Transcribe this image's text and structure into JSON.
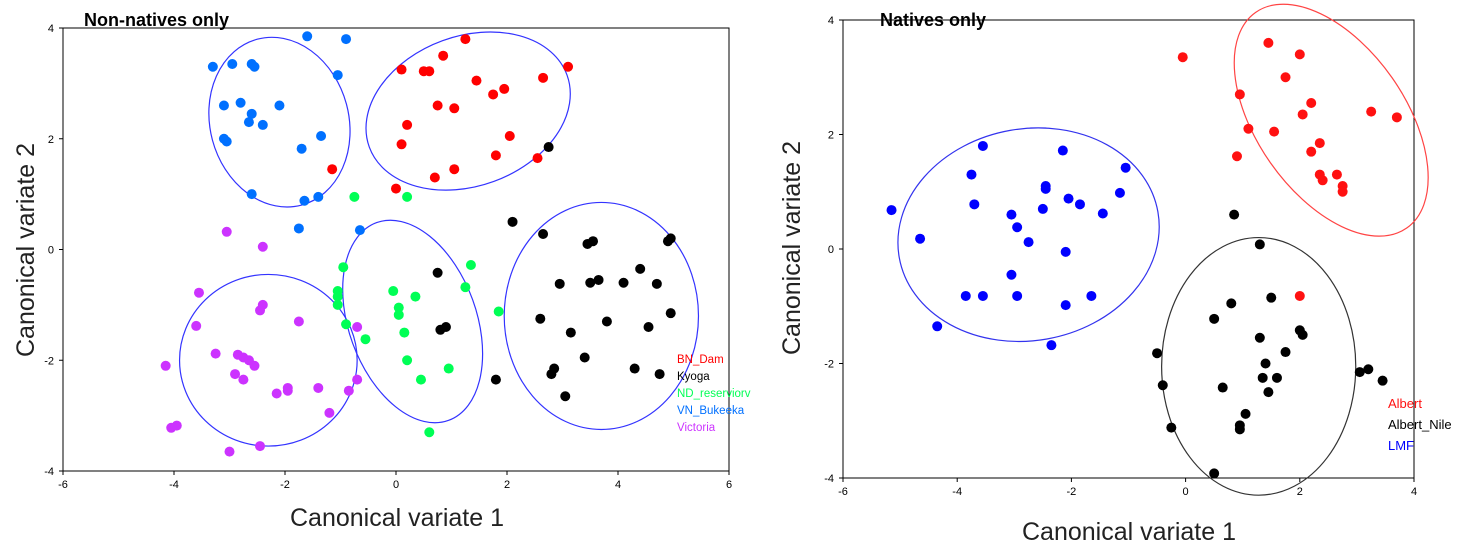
{
  "chart_data": [
    {
      "type": "scatter",
      "title": "Non-natives only",
      "xlabel": "Canonical variate 1",
      "ylabel": "Canonical variate 2",
      "xlim": [
        -6,
        6
      ],
      "ylim": [
        -4,
        4
      ],
      "xticks": [
        "-6",
        "-4",
        "-2",
        "0",
        "2",
        "4",
        "6"
      ],
      "yticks": [
        "4",
        "2",
        "0",
        "-2",
        "-4"
      ],
      "legend_position": "bottom-right",
      "series": [
        {
          "name": "BN_Dam",
          "color": "#ff0000",
          "points": [
            [
              0.1,
              3.25
            ],
            [
              0.5,
              3.22
            ],
            [
              0.6,
              3.22
            ],
            [
              0.85,
              3.5
            ],
            [
              1.25,
              3.8
            ],
            [
              1.45,
              3.05
            ],
            [
              1.75,
              2.8
            ],
            [
              1.95,
              2.9
            ],
            [
              2.65,
              3.1
            ],
            [
              3.1,
              3.3
            ],
            [
              0.75,
              2.6
            ],
            [
              1.05,
              2.55
            ],
            [
              0.2,
              2.25
            ],
            [
              0.1,
              1.9
            ],
            [
              1.8,
              1.7
            ],
            [
              2.05,
              2.05
            ],
            [
              2.55,
              1.65
            ],
            [
              1.05,
              1.45
            ],
            [
              0.7,
              1.3
            ],
            [
              -1.15,
              1.45
            ],
            [
              0.0,
              1.1
            ]
          ]
        },
        {
          "name": "Kyoga",
          "color": "#000000",
          "points": [
            [
              2.75,
              1.85
            ],
            [
              2.1,
              0.5
            ],
            [
              2.65,
              0.28
            ],
            [
              3.45,
              0.1
            ],
            [
              3.55,
              0.15
            ],
            [
              4.9,
              0.15
            ],
            [
              4.95,
              0.2
            ],
            [
              0.75,
              -0.42
            ],
            [
              2.95,
              -0.62
            ],
            [
              3.5,
              -0.6
            ],
            [
              3.65,
              -0.55
            ],
            [
              4.1,
              -0.6
            ],
            [
              4.4,
              -0.35
            ],
            [
              4.7,
              -0.62
            ],
            [
              4.95,
              -1.15
            ],
            [
              2.6,
              -1.25
            ],
            [
              3.15,
              -1.5
            ],
            [
              3.8,
              -1.3
            ],
            [
              4.55,
              -1.4
            ],
            [
              0.8,
              -1.45
            ],
            [
              0.9,
              -1.4
            ],
            [
              3.4,
              -1.95
            ],
            [
              4.3,
              -2.15
            ],
            [
              2.85,
              -2.15
            ],
            [
              2.8,
              -2.25
            ],
            [
              1.8,
              -2.35
            ],
            [
              4.75,
              -2.25
            ],
            [
              3.05,
              -2.65
            ]
          ]
        },
        {
          "name": "ND_reserviorv",
          "color": "#00ff55",
          "points": [
            [
              -0.75,
              0.95
            ],
            [
              0.2,
              0.95
            ],
            [
              -0.95,
              -0.32
            ],
            [
              1.35,
              -0.28
            ],
            [
              1.25,
              -0.68
            ],
            [
              -1.05,
              -0.75
            ],
            [
              -0.05,
              -0.75
            ],
            [
              -1.05,
              -0.85
            ],
            [
              0.35,
              -0.85
            ],
            [
              -1.05,
              -1.0
            ],
            [
              0.05,
              -1.05
            ],
            [
              1.85,
              -1.12
            ],
            [
              0.05,
              -1.18
            ],
            [
              -0.9,
              -1.35
            ],
            [
              0.15,
              -1.5
            ],
            [
              -0.55,
              -1.62
            ],
            [
              0.2,
              -2.0
            ],
            [
              0.95,
              -2.15
            ],
            [
              0.45,
              -2.35
            ],
            [
              0.6,
              -3.3
            ]
          ]
        },
        {
          "name": "VN_Bukeeka",
          "color": "#0070ff",
          "points": [
            [
              -1.6,
              3.85
            ],
            [
              -0.9,
              3.8
            ],
            [
              -3.3,
              3.3
            ],
            [
              -2.95,
              3.35
            ],
            [
              -2.6,
              3.35
            ],
            [
              -2.55,
              3.3
            ],
            [
              -1.05,
              3.15
            ],
            [
              -3.1,
              2.6
            ],
            [
              -2.8,
              2.65
            ],
            [
              -2.1,
              2.6
            ],
            [
              -2.6,
              2.45
            ],
            [
              -2.65,
              2.3
            ],
            [
              -2.4,
              2.25
            ],
            [
              -3.1,
              2.0
            ],
            [
              -3.05,
              1.95
            ],
            [
              -1.35,
              2.05
            ],
            [
              -1.7,
              1.82
            ],
            [
              -2.6,
              1.0
            ],
            [
              -1.4,
              0.95
            ],
            [
              -1.65,
              0.88
            ],
            [
              -1.75,
              0.38
            ],
            [
              -0.65,
              0.35
            ]
          ]
        },
        {
          "name": "Victoria",
          "color": "#cc33ff",
          "points": [
            [
              -3.05,
              0.32
            ],
            [
              -2.4,
              0.05
            ],
            [
              -3.55,
              -0.78
            ],
            [
              -2.4,
              -1.0
            ],
            [
              -2.45,
              -1.1
            ],
            [
              -1.75,
              -1.3
            ],
            [
              -0.7,
              -1.4
            ],
            [
              -3.6,
              -1.38
            ],
            [
              -3.25,
              -1.88
            ],
            [
              -2.85,
              -1.9
            ],
            [
              -2.75,
              -1.95
            ],
            [
              -2.65,
              -2.0
            ],
            [
              -2.55,
              -2.1
            ],
            [
              -2.9,
              -2.25
            ],
            [
              -2.75,
              -2.35
            ],
            [
              -0.7,
              -2.35
            ],
            [
              -4.15,
              -2.1
            ],
            [
              -2.15,
              -2.6
            ],
            [
              -1.95,
              -2.5
            ],
            [
              -1.4,
              -2.5
            ],
            [
              -1.95,
              -2.55
            ],
            [
              -0.85,
              -2.55
            ],
            [
              -1.2,
              -2.95
            ],
            [
              -4.05,
              -3.22
            ],
            [
              -3.95,
              -3.18
            ],
            [
              -2.45,
              -3.55
            ],
            [
              -3.0,
              -3.65
            ]
          ]
        }
      ],
      "ellipses": [
        {
          "group": "VN_Bukeeka",
          "cx": -2.1,
          "cy": 2.3,
          "rx": 1.25,
          "ry": 1.55,
          "rotate": -15
        },
        {
          "group": "BN_Dam",
          "cx": 1.3,
          "cy": 2.5,
          "rx": 1.35,
          "ry": 1.9,
          "rotate": 70
        },
        {
          "group": "ND_reserviorv",
          "cx": 0.3,
          "cy": -1.3,
          "rx": 1.15,
          "ry": 1.9,
          "rotate": -20
        },
        {
          "group": "Kyoga",
          "cx": 3.7,
          "cy": -1.2,
          "rx": 1.75,
          "ry": 2.05,
          "rotate": 0
        },
        {
          "group": "Victoria",
          "cx": -2.3,
          "cy": -2.0,
          "rx": 1.6,
          "ry": 1.55,
          "rotate": 0
        }
      ],
      "ellipse_color": "#3333ff"
    },
    {
      "type": "scatter",
      "title": "Natives only",
      "xlabel": "Canonical variate 1",
      "ylabel": "Canonical variate 2",
      "xlim": [
        -6,
        4
      ],
      "ylim": [
        -4,
        4
      ],
      "xticks": [
        "-6",
        "-4",
        "-2",
        "0",
        "2",
        "4"
      ],
      "yticks": [
        "4",
        "2",
        "0",
        "-2",
        "-4"
      ],
      "legend_position": "bottom-right",
      "series": [
        {
          "name": "Albert",
          "color": "#ff1111",
          "points": [
            [
              -0.05,
              3.35
            ],
            [
              1.45,
              3.6
            ],
            [
              2.0,
              3.4
            ],
            [
              1.75,
              3.0
            ],
            [
              0.95,
              2.7
            ],
            [
              2.2,
              2.55
            ],
            [
              2.05,
              2.35
            ],
            [
              1.1,
              2.1
            ],
            [
              1.55,
              2.05
            ],
            [
              3.25,
              2.4
            ],
            [
              3.7,
              2.3
            ],
            [
              2.35,
              1.85
            ],
            [
              2.2,
              1.7
            ],
            [
              0.9,
              1.62
            ],
            [
              2.35,
              1.3
            ],
            [
              2.4,
              1.2
            ],
            [
              2.65,
              1.3
            ],
            [
              2.75,
              1.1
            ],
            [
              2.75,
              1.0
            ],
            [
              2.0,
              -0.82
            ]
          ]
        },
        {
          "name": "Albert_Nile",
          "color": "#000000",
          "points": [
            [
              0.85,
              0.6
            ],
            [
              1.3,
              0.08
            ],
            [
              0.8,
              -0.95
            ],
            [
              1.5,
              -0.85
            ],
            [
              0.5,
              -1.22
            ],
            [
              1.3,
              -1.55
            ],
            [
              2.0,
              -1.42
            ],
            [
              2.05,
              -1.5
            ],
            [
              -0.5,
              -1.82
            ],
            [
              1.75,
              -1.8
            ],
            [
              1.4,
              -2.0
            ],
            [
              1.35,
              -2.25
            ],
            [
              1.6,
              -2.25
            ],
            [
              3.05,
              -2.15
            ],
            [
              3.2,
              -2.1
            ],
            [
              3.45,
              -2.3
            ],
            [
              -0.4,
              -2.38
            ],
            [
              0.65,
              -2.42
            ],
            [
              1.45,
              -2.5
            ],
            [
              1.05,
              -2.88
            ],
            [
              0.95,
              -3.08
            ],
            [
              0.95,
              -3.15
            ],
            [
              -0.25,
              -3.12
            ],
            [
              0.5,
              -3.92
            ]
          ]
        },
        {
          "name": "LMF",
          "color": "#0000ff",
          "points": [
            [
              -3.55,
              1.8
            ],
            [
              -2.15,
              1.72
            ],
            [
              -1.05,
              1.42
            ],
            [
              -3.75,
              1.3
            ],
            [
              -2.45,
              1.1
            ],
            [
              -2.45,
              1.05
            ],
            [
              -2.05,
              0.88
            ],
            [
              -1.85,
              0.78
            ],
            [
              -1.15,
              0.98
            ],
            [
              -3.7,
              0.78
            ],
            [
              -2.5,
              0.7
            ],
            [
              -5.15,
              0.68
            ],
            [
              -1.45,
              0.62
            ],
            [
              -3.05,
              0.6
            ],
            [
              -2.95,
              0.38
            ],
            [
              -4.65,
              0.18
            ],
            [
              -2.75,
              0.12
            ],
            [
              -2.1,
              -0.05
            ],
            [
              -3.05,
              -0.45
            ],
            [
              -3.85,
              -0.82
            ],
            [
              -3.55,
              -0.82
            ],
            [
              -2.95,
              -0.82
            ],
            [
              -1.65,
              -0.82
            ],
            [
              -2.1,
              -0.98
            ],
            [
              -4.35,
              -1.35
            ],
            [
              -2.35,
              -1.68
            ]
          ]
        }
      ],
      "ellipses": [
        {
          "group": "LMF",
          "cx": -2.75,
          "cy": 0.25,
          "rx": 2.3,
          "ry": 1.85,
          "rotate": -10,
          "color": "#3333ee"
        },
        {
          "group": "Albert",
          "cx": 2.55,
          "cy": 2.25,
          "rx": 1.3,
          "ry": 2.3,
          "rotate": -35,
          "color": "#ff4444"
        },
        {
          "group": "Albert_Nile",
          "cx": 1.28,
          "cy": -2.05,
          "rx": 1.7,
          "ry": 2.25,
          "rotate": 0,
          "color": "#333333"
        }
      ]
    }
  ]
}
